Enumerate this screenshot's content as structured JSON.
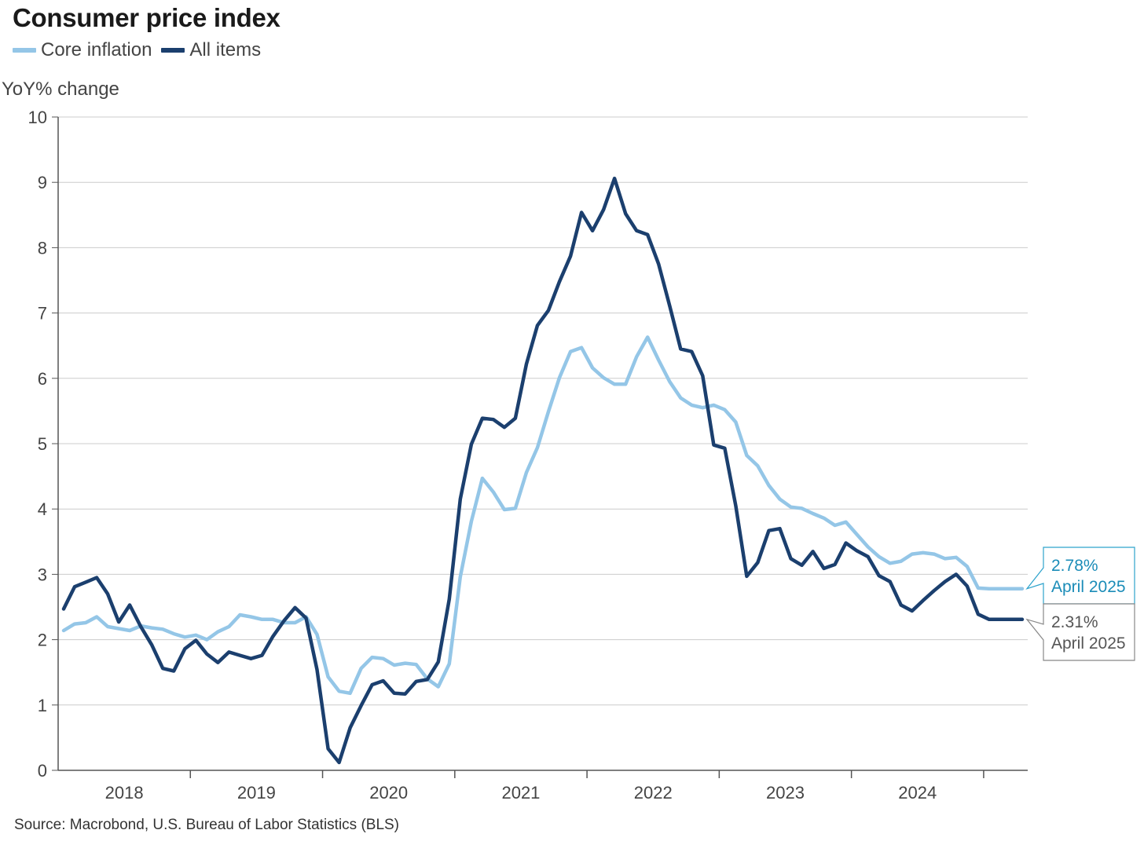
{
  "title": "Consumer price index",
  "source": "Source: Macrobond, U.S. Bureau of Labor Statistics (BLS)",
  "colors": {
    "core": "#94c6e7",
    "all": "#1b3f6e",
    "callout_core_text": "#1b8cb8",
    "grid": "#cccccc",
    "axis": "#555555"
  },
  "chart_data": {
    "type": "line",
    "ylabel": "YoY% change",
    "ylim": [
      0,
      10
    ],
    "yticks": [
      0,
      1,
      2,
      3,
      4,
      5,
      6,
      7,
      8,
      9,
      10
    ],
    "xlim": [
      "2018-01",
      "2025-04"
    ],
    "xticks": [
      "2018",
      "2019",
      "2020",
      "2021",
      "2022",
      "2023",
      "2024"
    ],
    "grid": true,
    "legend_position": "top-left",
    "x": [
      "2018-01",
      "2018-02",
      "2018-03",
      "2018-04",
      "2018-05",
      "2018-06",
      "2018-07",
      "2018-08",
      "2018-09",
      "2018-10",
      "2018-11",
      "2018-12",
      "2019-01",
      "2019-02",
      "2019-03",
      "2019-04",
      "2019-05",
      "2019-06",
      "2019-07",
      "2019-08",
      "2019-09",
      "2019-10",
      "2019-11",
      "2019-12",
      "2020-01",
      "2020-02",
      "2020-03",
      "2020-04",
      "2020-05",
      "2020-06",
      "2020-07",
      "2020-08",
      "2020-09",
      "2020-10",
      "2020-11",
      "2020-12",
      "2021-01",
      "2021-02",
      "2021-03",
      "2021-04",
      "2021-05",
      "2021-06",
      "2021-07",
      "2021-08",
      "2021-09",
      "2021-10",
      "2021-11",
      "2021-12",
      "2022-01",
      "2022-02",
      "2022-03",
      "2022-04",
      "2022-05",
      "2022-06",
      "2022-07",
      "2022-08",
      "2022-09",
      "2022-10",
      "2022-11",
      "2022-12",
      "2023-01",
      "2023-02",
      "2023-03",
      "2023-04",
      "2023-05",
      "2023-06",
      "2023-07",
      "2023-08",
      "2023-09",
      "2023-10",
      "2023-11",
      "2023-12",
      "2024-01",
      "2024-02",
      "2024-03",
      "2024-04",
      "2024-05",
      "2024-06",
      "2024-07",
      "2024-08",
      "2024-09",
      "2024-10",
      "2024-11",
      "2024-12",
      "2025-01",
      "2025-02",
      "2025-03",
      "2025-04"
    ],
    "series": [
      {
        "name": "Core inflation",
        "color": "#94c6e7",
        "values": [
          2.14,
          2.24,
          2.26,
          2.35,
          2.2,
          2.17,
          2.14,
          2.21,
          2.18,
          2.16,
          2.09,
          2.04,
          2.07,
          2.0,
          2.12,
          2.2,
          2.38,
          2.35,
          2.31,
          2.31,
          2.26,
          2.26,
          2.35,
          2.08,
          1.43,
          1.21,
          1.18,
          1.56,
          1.73,
          1.71,
          1.61,
          1.64,
          1.62,
          1.4,
          1.28,
          1.63,
          2.96,
          3.81,
          4.47,
          4.26,
          3.99,
          4.01,
          4.56,
          4.94,
          5.49,
          6.01,
          6.41,
          6.47,
          6.16,
          6.01,
          5.91,
          5.91,
          6.33,
          6.63,
          6.28,
          5.95,
          5.7,
          5.59,
          5.55,
          5.59,
          5.52,
          5.33,
          4.82,
          4.66,
          4.36,
          4.15,
          4.03,
          4.01,
          3.93,
          3.86,
          3.75,
          3.8,
          3.61,
          3.42,
          3.27,
          3.17,
          3.2,
          3.31,
          3.33,
          3.31,
          3.24,
          3.26,
          3.12,
          2.79,
          2.78,
          2.78,
          2.78,
          2.78
        ]
      },
      {
        "name": "All items",
        "color": "#1b3f6e",
        "values": [
          2.47,
          2.81,
          2.88,
          2.95,
          2.7,
          2.27,
          2.53,
          2.2,
          1.92,
          1.56,
          1.52,
          1.86,
          1.99,
          1.78,
          1.65,
          1.81,
          1.76,
          1.71,
          1.76,
          2.05,
          2.29,
          2.49,
          2.33,
          1.54,
          0.33,
          0.12,
          0.65,
          0.99,
          1.31,
          1.37,
          1.18,
          1.17,
          1.36,
          1.39,
          1.66,
          2.62,
          4.15,
          4.99,
          5.39,
          5.37,
          5.25,
          5.39,
          6.22,
          6.81,
          7.04,
          7.48,
          7.87,
          8.54,
          8.26,
          8.58,
          9.06,
          8.52,
          8.26,
          8.2,
          7.75,
          7.11,
          6.45,
          6.41,
          6.04,
          4.98,
          4.93,
          4.05,
          2.97,
          3.18,
          3.67,
          3.7,
          3.24,
          3.14,
          3.35,
          3.09,
          3.15,
          3.48,
          3.36,
          3.27,
          2.98,
          2.89,
          2.53,
          2.44,
          2.6,
          2.75,
          2.89,
          3.0,
          2.82,
          2.39,
          2.31,
          2.31,
          2.31,
          2.31
        ]
      }
    ],
    "annotations": [
      {
        "series": "Core inflation",
        "value_label": "2.78%",
        "date_label": "April 2025"
      },
      {
        "series": "All items",
        "value_label": "2.31%",
        "date_label": "April 2025"
      }
    ]
  }
}
